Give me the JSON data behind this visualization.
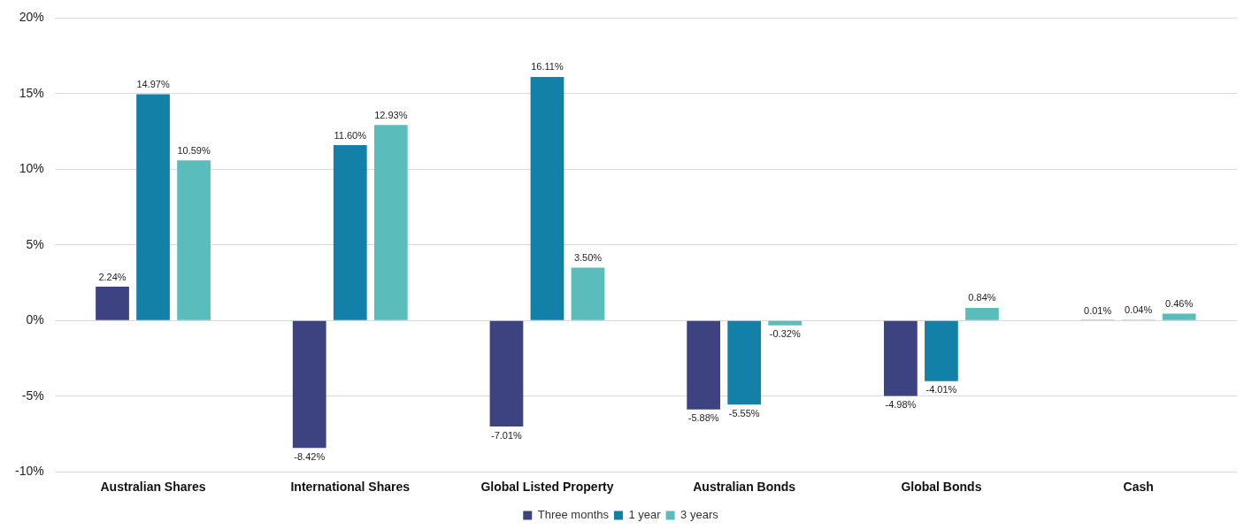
{
  "chart_data": {
    "type": "bar",
    "categories": [
      "Australian Shares",
      "International Shares",
      "Global Listed Property",
      "Australian Bonds",
      "Global Bonds",
      "Cash"
    ],
    "series": [
      {
        "name": "Three months",
        "color": "#3d4280",
        "values": [
          2.24,
          -8.42,
          -7.01,
          -5.88,
          -4.98,
          0.01
        ],
        "value_labels": [
          "2.24%",
          "-8.42%",
          "-7.01%",
          "-5.88%",
          "-4.98%",
          "0.01%"
        ]
      },
      {
        "name": "1 year",
        "color": "#1380a8",
        "values": [
          14.97,
          11.6,
          16.11,
          -5.55,
          -4.01,
          0.04
        ],
        "value_labels": [
          "14.97%",
          "11.60%",
          "16.11%",
          "-5.55%",
          "-4.01%",
          "0.04%"
        ]
      },
      {
        "name": "3 years",
        "color": "#5bbcbc",
        "values": [
          10.59,
          12.93,
          3.5,
          -0.32,
          0.84,
          0.46
        ],
        "value_labels": [
          "10.59%",
          "12.93%",
          "3.50%",
          "-0.32%",
          "0.84%",
          "0.46%"
        ]
      }
    ],
    "ylim": [
      -10,
      20
    ],
    "yticks": [
      {
        "value": -10,
        "label": "-10%"
      },
      {
        "value": -5,
        "label": "-5%"
      },
      {
        "value": 0,
        "label": "0%"
      },
      {
        "value": 5,
        "label": "5%"
      },
      {
        "value": 10,
        "label": "10%"
      },
      {
        "value": 15,
        "label": "15%"
      },
      {
        "value": 20,
        "label": "20%"
      }
    ],
    "grid": "y",
    "legend": "bottom"
  }
}
